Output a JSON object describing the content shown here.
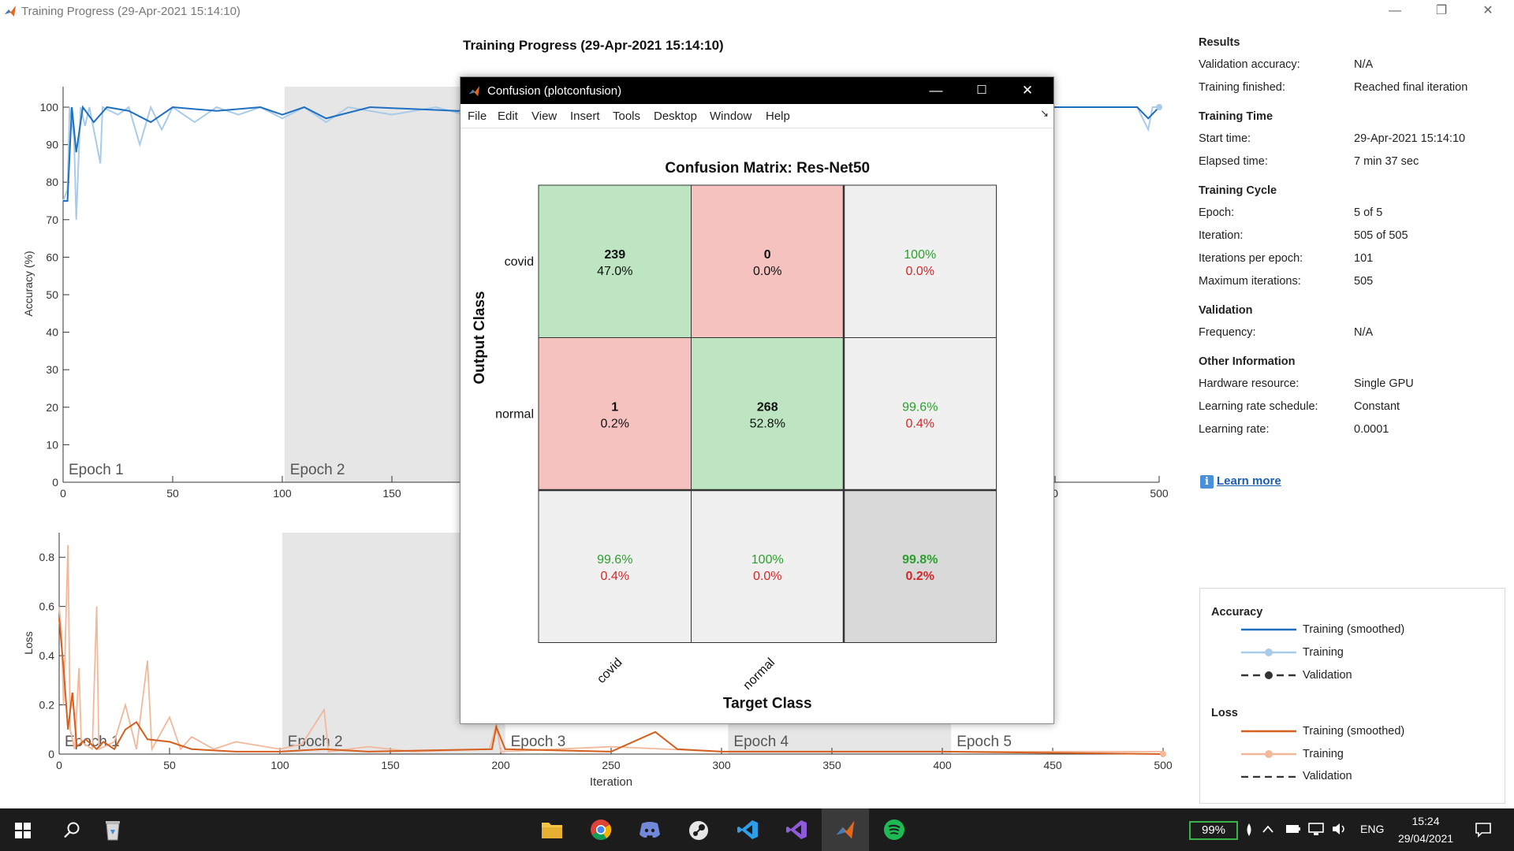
{
  "window": {
    "title": "Training Progress (29-Apr-2021 15:14:10)",
    "minimize": "—",
    "restore": "❐",
    "close": "✕"
  },
  "plot_title": "Training Progress (29-Apr-2021 15:14:10)",
  "accuracy_plot": {
    "ylabel": "Accuracy (%)",
    "yticks": [
      "0",
      "10",
      "20",
      "30",
      "40",
      "50",
      "60",
      "70",
      "80",
      "90",
      "100"
    ],
    "xticks_visible": [
      "0",
      "50",
      "100",
      "150",
      "0",
      "500"
    ],
    "epochs": [
      "Epoch 1",
      "Epoch 2"
    ]
  },
  "loss_plot": {
    "ylabel": "Loss",
    "yticks": [
      "0",
      "0.2",
      "0.4",
      "0.6",
      "0.8"
    ],
    "xticks": [
      "0",
      "50",
      "100",
      "150",
      "200",
      "250",
      "300",
      "350",
      "400",
      "450",
      "500"
    ],
    "xlabel": "Iteration",
    "epochs": [
      "Epoch 1",
      "Epoch 2",
      "Epoch 3",
      "Epoch 4",
      "Epoch 5"
    ]
  },
  "sidebar": {
    "sections": [
      {
        "title": "Results",
        "rows": [
          {
            "label": "Validation accuracy:",
            "value": "N/A"
          },
          {
            "label": "Training finished:",
            "value": "Reached final iteration"
          }
        ]
      },
      {
        "title": "Training Time",
        "rows": [
          {
            "label": "Start time:",
            "value": "29-Apr-2021 15:14:10"
          },
          {
            "label": "Elapsed time:",
            "value": "7 min 37 sec"
          }
        ]
      },
      {
        "title": "Training Cycle",
        "rows": [
          {
            "label": "Epoch:",
            "value": "5 of 5"
          },
          {
            "label": "Iteration:",
            "value": "505 of 505"
          },
          {
            "label": "Iterations per epoch:",
            "value": "101"
          },
          {
            "label": "Maximum iterations:",
            "value": "505"
          }
        ]
      },
      {
        "title": "Validation",
        "rows": [
          {
            "label": "Frequency:",
            "value": "N/A"
          }
        ]
      },
      {
        "title": "Other Information",
        "rows": [
          {
            "label": "Hardware resource:",
            "value": "Single GPU"
          },
          {
            "label": "Learning rate schedule:",
            "value": "Constant"
          },
          {
            "label": "Learning rate:",
            "value": "0.0001"
          }
        ]
      }
    ],
    "learn_more": "Learn more"
  },
  "legend": {
    "accuracy_title": "Accuracy",
    "loss_title": "Loss",
    "items": [
      "Training (smoothed)",
      "Training",
      "Validation"
    ],
    "colors": {
      "acc_smoothed": "#1f6fc0",
      "acc_raw": "#a9cbea",
      "val": "#333333",
      "loss_smoothed": "#d45f1e",
      "loss_raw": "#f2b899"
    }
  },
  "confusion_window": {
    "title": "Confusion (plotconfusion)",
    "menu": [
      "File",
      "Edit",
      "View",
      "Insert",
      "Tools",
      "Desktop",
      "Window",
      "Help"
    ],
    "dock_icon": "↘"
  },
  "chart_data": {
    "type": "heatmap",
    "title": "Confusion Matrix: Res-Net50",
    "xlabel": "Target Class",
    "ylabel": "Output Class",
    "row_labels": [
      "covid",
      "normal"
    ],
    "col_labels": [
      "covid",
      "normal"
    ],
    "cells": [
      [
        {
          "count": "239",
          "pct": "47.0%"
        },
        {
          "count": "0",
          "pct": "0.0%"
        }
      ],
      [
        {
          "count": "1",
          "pct": "0.2%"
        },
        {
          "count": "268",
          "pct": "52.8%"
        }
      ]
    ],
    "row_summary": [
      {
        "good": "100%",
        "bad": "0.0%"
      },
      {
        "good": "99.6%",
        "bad": "0.4%"
      }
    ],
    "col_summary": [
      {
        "good": "99.6%",
        "bad": "0.4%"
      },
      {
        "good": "100%",
        "bad": "0.0%"
      }
    ],
    "overall": {
      "good": "99.8%",
      "bad": "0.2%"
    },
    "colors": {
      "correct": "#bde5c2",
      "wrong": "#f5c2c0",
      "summary": "#f0f0f0",
      "overall": "#d9d9d9",
      "good_text": "#2ca02c",
      "bad_text": "#d62728"
    }
  },
  "taskbar": {
    "battery": "99%",
    "lang": "ENG",
    "time": "15:24",
    "date": "29/04/2021"
  }
}
